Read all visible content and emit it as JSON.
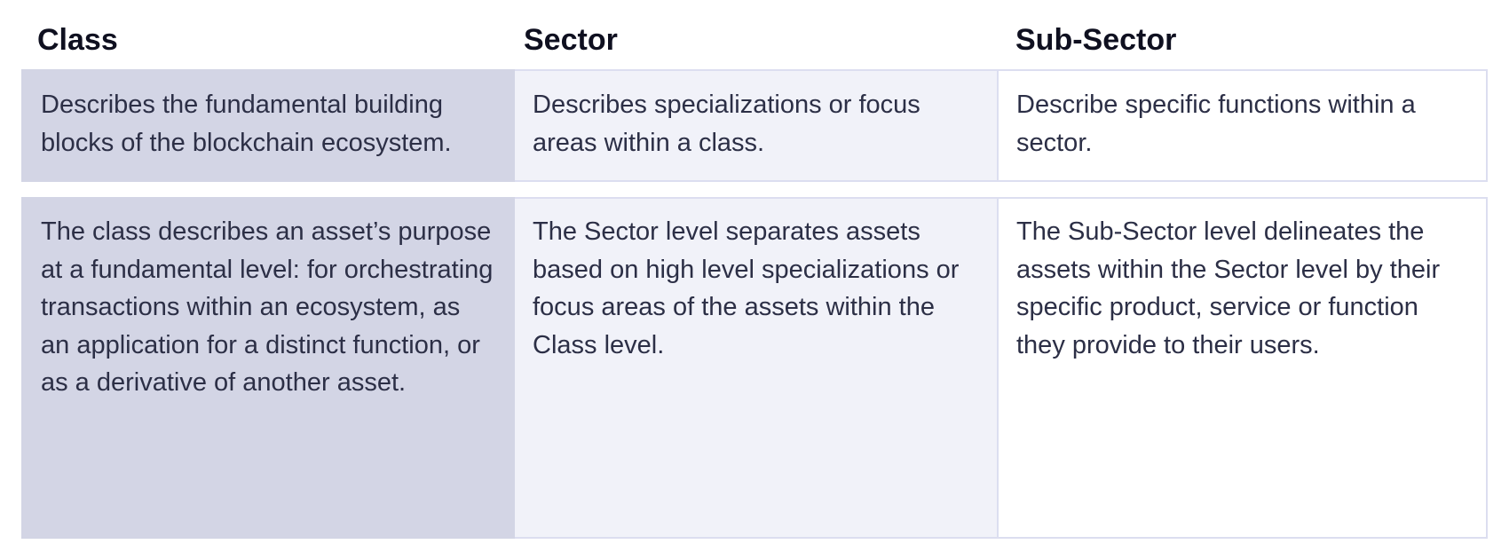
{
  "headers": {
    "class": "Class",
    "sector": "Sector",
    "sub_sector": "Sub-Sector"
  },
  "rows": [
    {
      "class": "Describes the fundamental building blocks of the blockchain ecosystem.",
      "sector": "Describes specializations or focus areas within a class.",
      "sub_sector": "Describe specific functions within a sector."
    },
    {
      "class": "The class describes an asset’s purpose at a fundamental level: for orchestrating transactions within an ecosystem, as an application for a distinct function, or as a derivative of another asset.",
      "sector": "The Sector level separates assets based on high level specializations or focus areas of the assets within the Class level.",
      "sub_sector": "The Sub-Sector level delineates the assets within the Sector level by their specific product, service or function they provide to their users."
    }
  ],
  "colors": {
    "class_column_bg": "#d3d5e5",
    "sector_column_bg": "#f1f2f9",
    "sub_sector_column_bg": "#ffffff",
    "border": "#dcdef0",
    "text": "#2c2f46",
    "header_text": "#0f1020"
  }
}
